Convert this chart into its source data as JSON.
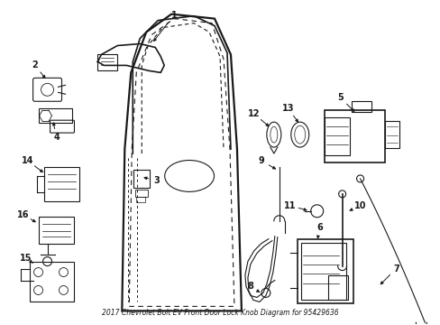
{
  "title": "2017 Chevrolet Bolt EV Front Door Lock Knob Diagram for 95429636",
  "bg_color": "#ffffff",
  "line_color": "#1a1a1a",
  "fig_width": 4.89,
  "fig_height": 3.6,
  "dpi": 100
}
